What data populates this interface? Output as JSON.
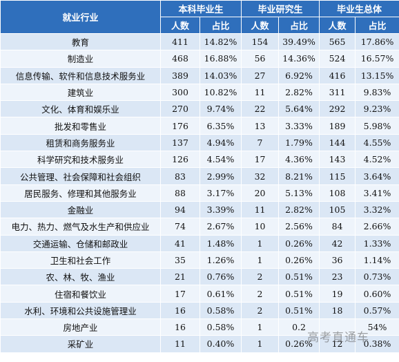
{
  "header": {
    "industry": "就业行业",
    "groups": [
      "本科毕业生",
      "毕业研究生",
      "毕业生总体"
    ],
    "sub": [
      "人数",
      "占比",
      "人数",
      "占比",
      "人数",
      "占比"
    ]
  },
  "rows": [
    {
      "name": "教育",
      "v": [
        "411",
        "14.82%",
        "154",
        "39.49%",
        "565",
        "17.86%"
      ]
    },
    {
      "name": "制造业",
      "v": [
        "468",
        "16.88%",
        "56",
        "14.36%",
        "524",
        "16.57%"
      ]
    },
    {
      "name": "信息传输、软件和信息技术服务业",
      "v": [
        "389",
        "14.03%",
        "27",
        "6.92%",
        "416",
        "13.15%"
      ]
    },
    {
      "name": "建筑业",
      "v": [
        "300",
        "10.82%",
        "11",
        "2.82%",
        "311",
        "9.83%"
      ]
    },
    {
      "name": "文化、体育和娱乐业",
      "v": [
        "270",
        "9.74%",
        "22",
        "5.64%",
        "292",
        "9.23%"
      ]
    },
    {
      "name": "批发和零售业",
      "v": [
        "176",
        "6.35%",
        "13",
        "3.33%",
        "189",
        "5.98%"
      ]
    },
    {
      "name": "租赁和商务服务业",
      "v": [
        "137",
        "4.94%",
        "7",
        "1.79%",
        "144",
        "4.55%"
      ]
    },
    {
      "name": "科学研究和技术服务业",
      "v": [
        "126",
        "4.54%",
        "17",
        "4.36%",
        "143",
        "4.52%"
      ]
    },
    {
      "name": "公共管理、社会保障和社会组织",
      "v": [
        "83",
        "2.99%",
        "32",
        "8.21%",
        "115",
        "3.64%"
      ]
    },
    {
      "name": "居民服务、修理和其他服务业",
      "v": [
        "88",
        "3.17%",
        "20",
        "5.13%",
        "108",
        "3.41%"
      ]
    },
    {
      "name": "金融业",
      "v": [
        "94",
        "3.39%",
        "11",
        "2.82%",
        "105",
        "3.32%"
      ]
    },
    {
      "name": "电力、热力、燃气及水生产和供应业",
      "v": [
        "74",
        "2.67%",
        "10",
        "2.56%",
        "84",
        "2.66%"
      ]
    },
    {
      "name": "交通运输、仓储和邮政业",
      "v": [
        "41",
        "1.48%",
        "1",
        "0.26%",
        "42",
        "1.33%"
      ]
    },
    {
      "name": "卫生和社会工作",
      "v": [
        "35",
        "1.26%",
        "1",
        "0.26%",
        "36",
        "1.14%"
      ]
    },
    {
      "name": "农、林、牧、渔业",
      "v": [
        "21",
        "0.76%",
        "2",
        "0.51%",
        "23",
        "0.73%"
      ]
    },
    {
      "name": "住宿和餐饮业",
      "v": [
        "17",
        "0.61%",
        "2",
        "0.51%",
        "19",
        "0.60%"
      ]
    },
    {
      "name": "水利、环境和公共设施管理业",
      "v": [
        "16",
        "0.58%",
        "2",
        "0.51%",
        "18",
        "0.57%"
      ]
    },
    {
      "name": "房地产业",
      "v": [
        "16",
        "0.58%",
        "1",
        "0.2",
        "",
        "54%"
      ]
    },
    {
      "name": "采矿业",
      "v": [
        "11",
        "0.40%",
        "1",
        "0.26%",
        "12",
        "0.38%"
      ]
    }
  ],
  "watermark": "高考直通车",
  "colors": {
    "header_bg": "#2f6fbc",
    "row_a": "#dbe7f5",
    "row_b": "#eef4fb"
  }
}
